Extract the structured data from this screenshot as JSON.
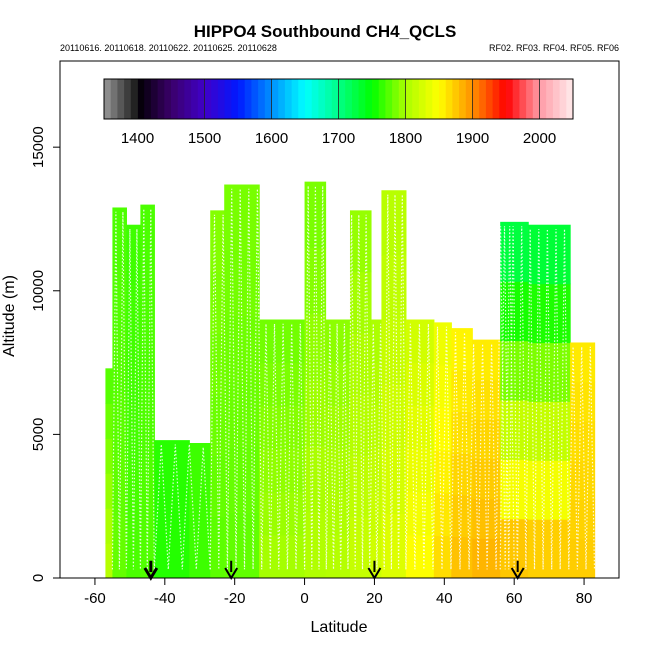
{
  "chart_data": {
    "type": "heatmap",
    "title": "HIPPO4 Southbound CH4_QCLS",
    "subtitle_left": "20110616. 20110618. 20110622. 20110625. 20110628",
    "subtitle_right": "RF02. RF03. RF04. RF05. RF06",
    "xlabel": "Latitude",
    "ylabel": "Altitude (m)",
    "xlim": [
      -70,
      90
    ],
    "ylim": [
      0,
      18000
    ],
    "x_ticks": [
      -60,
      -40,
      -20,
      0,
      20,
      40,
      60,
      80
    ],
    "x_tick_labels": [
      "-60",
      "-40",
      "-20",
      "0",
      "20",
      "40",
      "60",
      "80"
    ],
    "y_ticks": [
      0,
      5000,
      10000,
      15000
    ],
    "y_tick_labels": [
      "0",
      "5000",
      "10000",
      "15000"
    ],
    "colorbar": {
      "range": [
        1350,
        2050
      ],
      "ticks": [
        1400,
        1500,
        1600,
        1700,
        1800,
        1900,
        2000
      ],
      "tick_labels": [
        "1400",
        "1500",
        "1600",
        "1700",
        "1800",
        "1900",
        "2000"
      ],
      "stops": [
        {
          "value": 1350,
          "color": "#9a9a9a"
        },
        {
          "value": 1395,
          "color": "#222222"
        },
        {
          "value": 1400,
          "color": "#000000"
        },
        {
          "value": 1450,
          "color": "#3a006a"
        },
        {
          "value": 1500,
          "color": "#4000c8"
        },
        {
          "value": 1550,
          "color": "#0018ff"
        },
        {
          "value": 1600,
          "color": "#0090ff"
        },
        {
          "value": 1650,
          "color": "#00ffff"
        },
        {
          "value": 1700,
          "color": "#00ff88"
        },
        {
          "value": 1750,
          "color": "#00ff00"
        },
        {
          "value": 1800,
          "color": "#aaff00"
        },
        {
          "value": 1850,
          "color": "#ffff00"
        },
        {
          "value": 1900,
          "color": "#ff9000"
        },
        {
          "value": 1950,
          "color": "#ff0000"
        },
        {
          "value": 2000,
          "color": "#ff9aa6"
        },
        {
          "value": 2050,
          "color": "#ffecec"
        }
      ]
    },
    "columns": [
      {
        "lat": [
          -57,
          -55
        ],
        "top": 7300,
        "base": 1810,
        "top_val": 1772
      },
      {
        "lat": [
          -55,
          -51
        ],
        "top": 12900,
        "base": 1780,
        "top_val": 1772
      },
      {
        "lat": [
          -51,
          -47
        ],
        "top": 12300,
        "base": 1772,
        "top_val": 1768
      },
      {
        "lat": [
          -47,
          -43
        ],
        "top": 13000,
        "base": 1774,
        "top_val": 1772
      },
      {
        "lat": [
          -43,
          -33
        ],
        "top": 4800,
        "base": 1760,
        "top_val": 1762
      },
      {
        "lat": [
          -33,
          -27
        ],
        "top": 4700,
        "base": 1768,
        "top_val": 1768
      },
      {
        "lat": [
          -27,
          -23
        ],
        "top": 12800,
        "base": 1776,
        "top_val": 1790
      },
      {
        "lat": [
          -23,
          -13
        ],
        "top": 13700,
        "base": 1778,
        "top_val": 1786
      },
      {
        "lat": [
          -13,
          0
        ],
        "top": 9000,
        "base": 1800,
        "top_val": 1782
      },
      {
        "lat": [
          0,
          6
        ],
        "top": 13800,
        "base": 1806,
        "top_val": 1784
      },
      {
        "lat": [
          6,
          13
        ],
        "top": 9000,
        "base": 1808,
        "top_val": 1790
      },
      {
        "lat": [
          13,
          19
        ],
        "top": 12800,
        "base": 1818,
        "top_val": 1792
      },
      {
        "lat": [
          19,
          22
        ],
        "top": 9000,
        "base": 1824,
        "top_val": 1800
      },
      {
        "lat": [
          22,
          29
        ],
        "top": 13500,
        "base": 1832,
        "top_val": 1806
      },
      {
        "lat": [
          29,
          37
        ],
        "top": 9000,
        "base": 1852,
        "top_val": 1820
      },
      {
        "lat": [
          37,
          42
        ],
        "top": 8900,
        "base": 1868,
        "top_val": 1838
      },
      {
        "lat": [
          42,
          48
        ],
        "top": 8700,
        "base": 1880,
        "top_val": 1852
      },
      {
        "lat": [
          48,
          56
        ],
        "top": 8300,
        "base": 1886,
        "top_val": 1856
      },
      {
        "lat": [
          56,
          64
        ],
        "top": 12400,
        "base": 1890,
        "top_val": 1712
      },
      {
        "lat": [
          64,
          76
        ],
        "top": 12300,
        "base": 1886,
        "top_val": 1716
      },
      {
        "lat": [
          76,
          83
        ],
        "top": 8200,
        "base": 1874,
        "top_val": 1858
      }
    ],
    "flight_tracks": [
      {
        "lat": [
          -55,
          -43
        ],
        "sawteeth": 12
      },
      {
        "lat": [
          -43,
          -27
        ],
        "sawteeth": 8
      },
      {
        "lat": [
          -27,
          0
        ],
        "sawteeth": 22
      },
      {
        "lat": [
          0,
          29
        ],
        "sawteeth": 28
      },
      {
        "lat": [
          29,
          60
        ],
        "sawteeth": 24
      },
      {
        "lat": [
          56,
          83
        ],
        "sawteeth": 22
      }
    ],
    "markers": [
      {
        "lat": -44,
        "bold": true
      },
      {
        "lat": -21,
        "bold": false
      },
      {
        "lat": 20,
        "bold": false
      },
      {
        "lat": 61,
        "bold": false
      }
    ]
  }
}
